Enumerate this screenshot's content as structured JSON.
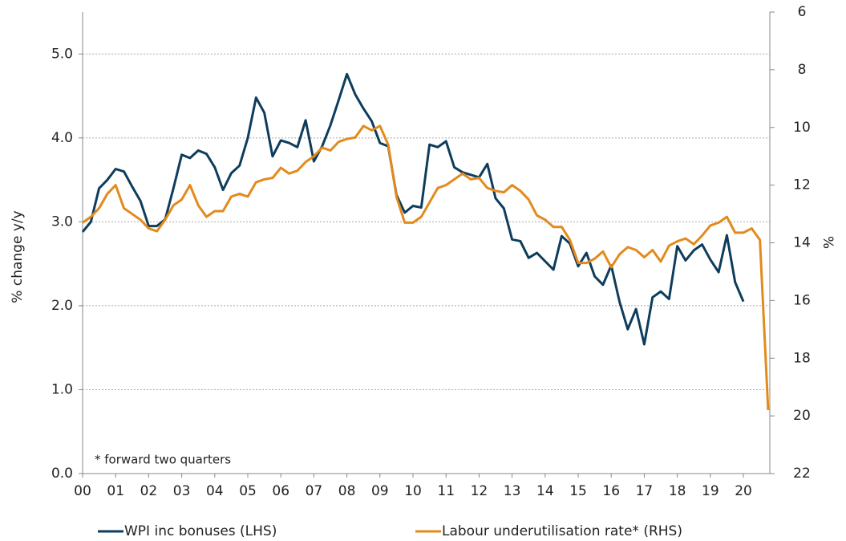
{
  "chart_data": {
    "type": "line",
    "y_label": "% change y/y",
    "y2_label": "%",
    "annotation": "*  forward two quarters",
    "xlim": [
      0,
      20.8
    ],
    "xticks": [
      {
        "value": 0,
        "label": "00"
      },
      {
        "value": 1,
        "label": "01"
      },
      {
        "value": 2,
        "label": "02"
      },
      {
        "value": 3,
        "label": "03"
      },
      {
        "value": 4,
        "label": "04"
      },
      {
        "value": 5,
        "label": "05"
      },
      {
        "value": 6,
        "label": "06"
      },
      {
        "value": 7,
        "label": "07"
      },
      {
        "value": 8,
        "label": "08"
      },
      {
        "value": 9,
        "label": "09"
      },
      {
        "value": 10,
        "label": "10"
      },
      {
        "value": 11,
        "label": "11"
      },
      {
        "value": 12,
        "label": "12"
      },
      {
        "value": 13,
        "label": "13"
      },
      {
        "value": 14,
        "label": "14"
      },
      {
        "value": 15,
        "label": "15"
      },
      {
        "value": 16,
        "label": "16"
      },
      {
        "value": 17,
        "label": "17"
      },
      {
        "value": 18,
        "label": "18"
      },
      {
        "value": 19,
        "label": "19"
      },
      {
        "value": 20,
        "label": "20"
      }
    ],
    "ylim": [
      0,
      5.5
    ],
    "yticks": [
      {
        "value": 0,
        "label": "0.0"
      },
      {
        "value": 1,
        "label": "1.0"
      },
      {
        "value": 2,
        "label": "2.0"
      },
      {
        "value": 3,
        "label": "3.0"
      },
      {
        "value": 4,
        "label": "4.0"
      },
      {
        "value": 5,
        "label": "5.0"
      }
    ],
    "y2lim": [
      22,
      6
    ],
    "y2_inverted": true,
    "y2ticks": [
      6,
      8,
      10,
      12,
      14,
      16,
      18,
      20,
      22
    ],
    "grid": true,
    "legend": "bottom",
    "series": [
      {
        "name": "WPI inc bonuses (LHS)",
        "color": "#0e3d5c",
        "axis": "y",
        "x": [
          0,
          0.25,
          0.5,
          0.75,
          1,
          1.25,
          1.5,
          1.75,
          2,
          2.25,
          2.5,
          2.75,
          3,
          3.25,
          3.5,
          3.75,
          4,
          4.25,
          4.5,
          4.75,
          5,
          5.25,
          5.5,
          5.75,
          6,
          6.25,
          6.5,
          6.75,
          7,
          7.25,
          7.5,
          7.75,
          8,
          8.25,
          8.5,
          8.75,
          9,
          9.25,
          9.5,
          9.75,
          10,
          10.25,
          10.5,
          10.75,
          11,
          11.25,
          11.5,
          11.75,
          12,
          12.25,
          12.5,
          12.75,
          13,
          13.25,
          13.5,
          13.75,
          14,
          14.25,
          14.5,
          14.75,
          15,
          15.25,
          15.5,
          15.75,
          16,
          16.25,
          16.5,
          16.75,
          17,
          17.25,
          17.5,
          17.75,
          18,
          18.25,
          18.5,
          18.75,
          19,
          19.25,
          19.5,
          19.75,
          20
        ],
        "values": [
          2.88,
          3.0,
          3.4,
          3.5,
          3.63,
          3.6,
          3.42,
          3.25,
          2.95,
          2.95,
          3.03,
          3.4,
          3.8,
          3.76,
          3.85,
          3.81,
          3.65,
          3.38,
          3.58,
          3.67,
          4.0,
          4.48,
          4.3,
          3.78,
          3.97,
          3.94,
          3.89,
          4.21,
          3.72,
          3.9,
          4.15,
          4.45,
          4.76,
          4.52,
          4.35,
          4.2,
          3.94,
          3.9,
          3.32,
          3.11,
          3.19,
          3.17,
          3.92,
          3.89,
          3.96,
          3.65,
          3.59,
          3.56,
          3.53,
          3.69,
          3.28,
          3.16,
          2.79,
          2.77,
          2.57,
          2.63,
          2.53,
          2.43,
          2.83,
          2.74,
          2.47,
          2.63,
          2.35,
          2.25,
          2.48,
          2.05,
          1.72,
          1.96,
          1.54,
          2.1,
          2.17,
          2.08,
          2.71,
          2.54,
          2.66,
          2.73,
          2.55,
          2.4,
          2.84,
          2.28,
          2.05
        ]
      },
      {
        "name": "Labour underutilisation rate* (RHS)",
        "color": "#e38a1c",
        "axis": "y2",
        "x": [
          0,
          0.25,
          0.5,
          0.75,
          1,
          1.25,
          1.5,
          1.75,
          2,
          2.25,
          2.5,
          2.75,
          3,
          3.25,
          3.5,
          3.75,
          4,
          4.25,
          4.5,
          4.75,
          5,
          5.25,
          5.5,
          5.75,
          6,
          6.25,
          6.5,
          6.75,
          7,
          7.25,
          7.5,
          7.75,
          8,
          8.25,
          8.5,
          8.75,
          9,
          9.25,
          9.5,
          9.75,
          10,
          10.25,
          10.5,
          10.75,
          11,
          11.25,
          11.5,
          11.75,
          12,
          12.25,
          12.5,
          12.75,
          13,
          13.25,
          13.5,
          13.75,
          14,
          14.25,
          14.5,
          14.75,
          15,
          15.25,
          15.5,
          15.75,
          16,
          16.25,
          16.5,
          16.75,
          17,
          17.25,
          17.5,
          17.75,
          18,
          18.25,
          18.5,
          18.75,
          19,
          19.25,
          19.5,
          19.75,
          20,
          20.25,
          20.5,
          20.75
        ],
        "values": [
          13.3,
          13.1,
          12.8,
          12.3,
          12.0,
          12.8,
          13.0,
          13.2,
          13.5,
          13.6,
          13.2,
          12.7,
          12.5,
          12.0,
          12.7,
          13.1,
          12.9,
          12.9,
          12.4,
          12.3,
          12.4,
          11.9,
          11.8,
          11.75,
          11.4,
          11.6,
          11.5,
          11.2,
          11.0,
          10.7,
          10.8,
          10.5,
          10.4,
          10.35,
          9.95,
          10.1,
          9.95,
          10.6,
          12.4,
          13.3,
          13.3,
          13.1,
          12.6,
          12.1,
          12.0,
          11.8,
          11.6,
          11.8,
          11.75,
          12.1,
          12.2,
          12.25,
          12.0,
          12.2,
          12.5,
          13.05,
          13.2,
          13.45,
          13.45,
          13.9,
          14.7,
          14.7,
          14.55,
          14.3,
          14.85,
          14.4,
          14.15,
          14.25,
          14.5,
          14.25,
          14.65,
          14.1,
          13.95,
          13.85,
          14.05,
          13.75,
          13.4,
          13.3,
          13.1,
          13.65,
          13.65,
          13.5,
          13.9,
          19.8
        ]
      }
    ]
  }
}
